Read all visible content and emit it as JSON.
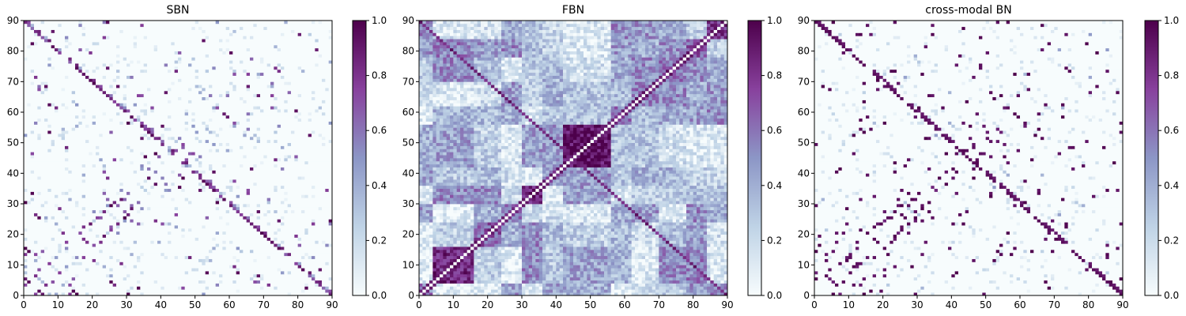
{
  "chart_data": [
    {
      "type": "heatmap",
      "title": "SBN",
      "xlim": [
        0,
        90
      ],
      "ylim": [
        0,
        90
      ],
      "xticks": [
        "0",
        "10",
        "20",
        "30",
        "40",
        "50",
        "60",
        "70",
        "80",
        "90"
      ],
      "yticks": [
        "0",
        "10",
        "20",
        "30",
        "40",
        "50",
        "60",
        "70",
        "80",
        "90"
      ],
      "colorbar": {
        "range": [
          0,
          1
        ],
        "ticks": [
          "0.0",
          "0.2",
          "0.4",
          "0.6",
          "0.8",
          "1.0"
        ]
      },
      "colormap": [
        "#f7fcfd",
        "#bfd3e6",
        "#8c96c6",
        "#88419d",
        "#4d004b"
      ],
      "grid": false,
      "clusters": [
        [
          0,
          8
        ],
        [
          4,
          14
        ],
        [
          9,
          17
        ],
        [
          17,
          24
        ],
        [
          20,
          32
        ],
        [
          33,
          40
        ],
        [
          38,
          48
        ],
        [
          45,
          56
        ],
        [
          55,
          63
        ],
        [
          62,
          66
        ],
        [
          67,
          71
        ],
        [
          72,
          78
        ],
        [
          79,
          85
        ],
        [
          86,
          90
        ]
      ],
      "values": "sparse symmetric 90x90 structural connectivity matrix (values 0-1, mostly near 0 with scattered strong cells)"
    },
    {
      "type": "heatmap",
      "title": "FBN",
      "xlim": [
        0,
        90
      ],
      "ylim": [
        0,
        90
      ],
      "xticks": [
        "0",
        "10",
        "20",
        "30",
        "40",
        "50",
        "60",
        "70",
        "80",
        "90"
      ],
      "yticks": [
        "0",
        "10",
        "20",
        "30",
        "40",
        "50",
        "60",
        "70",
        "80",
        "90"
      ],
      "colorbar": {
        "range": [
          0,
          1
        ],
        "ticks": [
          "0.0",
          "0.2",
          "0.4",
          "0.6",
          "0.8",
          "1.0"
        ]
      },
      "colormap": [
        "#f7fcfd",
        "#bfd3e6",
        "#8c96c6",
        "#88419d",
        "#4d004b"
      ],
      "grid": false,
      "blocks": [
        [
          0,
          4
        ],
        [
          4,
          16
        ],
        [
          16,
          24
        ],
        [
          24,
          30
        ],
        [
          30,
          36
        ],
        [
          36,
          42
        ],
        [
          42,
          56
        ],
        [
          56,
          62
        ],
        [
          62,
          70
        ],
        [
          70,
          78
        ],
        [
          78,
          84
        ],
        [
          84,
          90
        ]
      ],
      "values": "dense symmetric 90x90 functional connectivity matrix (values 0-1, block structure, strong block near 42-56)"
    },
    {
      "type": "heatmap",
      "title": "cross-modal BN",
      "xlim": [
        0,
        90
      ],
      "ylim": [
        0,
        90
      ],
      "xticks": [
        "0",
        "10",
        "20",
        "30",
        "40",
        "50",
        "60",
        "70",
        "80",
        "90"
      ],
      "yticks": [
        "0",
        "10",
        "20",
        "30",
        "40",
        "50",
        "60",
        "70",
        "80",
        "90"
      ],
      "colorbar": {
        "range": [
          0,
          1
        ],
        "ticks": [
          "0.0",
          "0.2",
          "0.4",
          "0.6",
          "0.8",
          "1.0"
        ]
      },
      "colormap": [
        "#f7fcfd",
        "#bfd3e6",
        "#8c96c6",
        "#88419d",
        "#4d004b"
      ],
      "grid": false,
      "clusters": [
        [
          0,
          8
        ],
        [
          4,
          14
        ],
        [
          9,
          17
        ],
        [
          17,
          24
        ],
        [
          20,
          32
        ],
        [
          33,
          40
        ],
        [
          38,
          48
        ],
        [
          45,
          56
        ],
        [
          55,
          63
        ],
        [
          62,
          66
        ],
        [
          67,
          71
        ],
        [
          72,
          78
        ],
        [
          79,
          85
        ],
        [
          86,
          90
        ]
      ],
      "values": "sparse symmetric 90x90 cross-modal connectivity matrix (values 0-1, mostly near 0 with scattered near-1 cells)"
    }
  ]
}
